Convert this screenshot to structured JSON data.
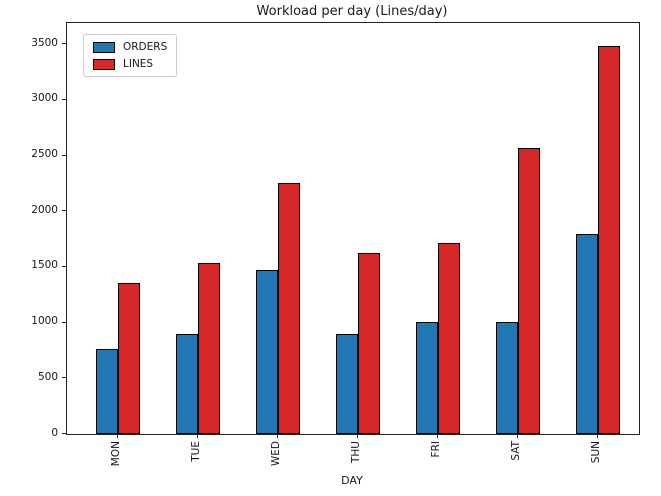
{
  "chart_data": {
    "type": "bar",
    "title": "Workload per day (Lines/day)",
    "xlabel": "DAY",
    "ylabel": "",
    "categories": [
      "MON",
      "TUE",
      "WED",
      "THU",
      "FRI",
      "SAT",
      "SUN"
    ],
    "series": [
      {
        "name": "ORDERS",
        "color": "#1f77b4",
        "values": [
          765,
          900,
          1470,
          900,
          1010,
          1010,
          1795
        ]
      },
      {
        "name": "LINES",
        "color": "#d62728",
        "values": [
          1355,
          1535,
          2250,
          1625,
          1715,
          2570,
          3485
        ]
      }
    ],
    "yticks": [
      0,
      500,
      1000,
      1500,
      2000,
      2500,
      3000,
      3500
    ],
    "ylim": [
      0,
      3690
    ],
    "grid": false,
    "legend_position": "upper left",
    "bar_edge_color": "#000000",
    "background": "#ffffff",
    "text_color": "#1a1a1a"
  }
}
